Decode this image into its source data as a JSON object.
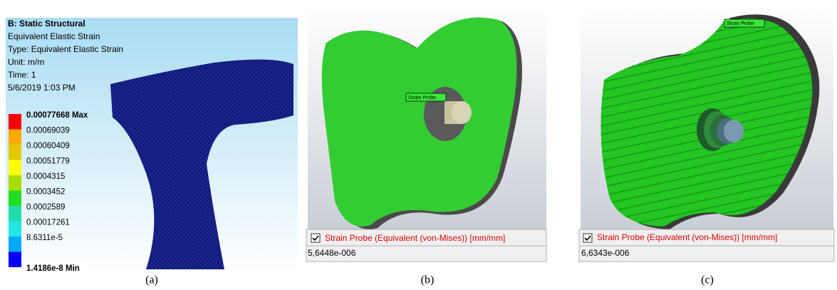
{
  "panel_a": {
    "header": [
      "B: Static Structural",
      "Equivalent Elastic Strain",
      "Type: Equivalent Elastic Strain",
      "Unit: m/m",
      "Time: 1",
      "5/6/2019 1:03 PM"
    ],
    "legend": [
      "0.00077668 Max",
      "0.00069039",
      "0.00060409",
      "0.00051779",
      "0.0004315",
      "0.0003452",
      "0.0002589",
      "0.00017261",
      "8.6311e-5",
      "1.4186e-8 Min"
    ],
    "caption": "(a)"
  },
  "panel_b": {
    "probe_tag": "Strain Probe",
    "probe_label": "Strain Probe (Equivalent (von-Mises)) [mm/mm]",
    "probe_value": "5,6448e-006",
    "caption": "(b)"
  },
  "panel_c": {
    "probe_tag": "Strain Probe",
    "probe_label": "Strain Probe (Equivalent (von-Mises)) [mm/mm]",
    "probe_value": "6,6343e-006",
    "caption": "(c)"
  }
}
